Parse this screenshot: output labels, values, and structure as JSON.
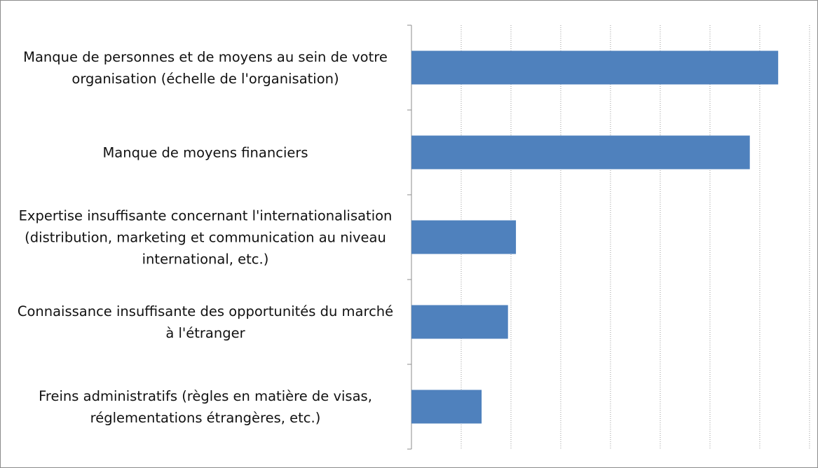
{
  "chart_data": {
    "type": "barh",
    "categories": [
      "Manque de personnes et de moyens au sein de votre organisation (échelle de l'organisation)",
      "Manque de moyens financiers",
      "Expertise insuffisante concernant l'internationalisation (distribution, marketing et communication au niveau international, etc.)",
      "Connaissance insuffisante des opportunités du marché à l'étranger",
      "Freins administratifs (règles en matière de visas, réglementations étrangères, etc.)"
    ],
    "values": [
      7.37,
      6.8,
      2.1,
      1.94,
      1.41
    ],
    "color": "#4f81bd",
    "xlim": [
      0,
      8.1
    ],
    "xticks": [
      0,
      1,
      2,
      3,
      4,
      5,
      6,
      7,
      8
    ],
    "grid": true
  }
}
